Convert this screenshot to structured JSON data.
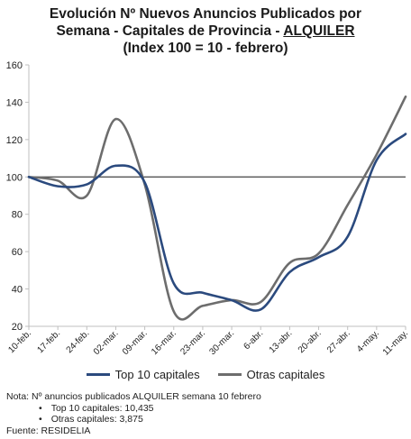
{
  "title": {
    "line1": "Evolución Nº Nuevos Anuncios Publicados por",
    "line2_prefix": "Semana - Capitales de Provincia - ",
    "line2_underlined": "ALQUILER",
    "line3": "(Index 100 = 10 - febrero)"
  },
  "chart_data": {
    "type": "line",
    "x": [
      "10-feb.",
      "17-feb.",
      "24-feb.",
      "02-mar.",
      "09-mar.",
      "16-mar.",
      "23-mar.",
      "30-mar.",
      "6-abr.",
      "13-abr.",
      "20-abr.",
      "27-abr.",
      "4-may.",
      "11-may."
    ],
    "ylim": [
      20,
      160
    ],
    "yticks": [
      20,
      40,
      60,
      80,
      100,
      120,
      140,
      160
    ],
    "reference_line": 100,
    "grid": false,
    "legend_position": "bottom",
    "series": [
      {
        "name": "Top 10 capitales",
        "color": "#2b4a7e",
        "values": [
          100,
          95,
          96,
          106,
          97,
          43,
          38,
          34,
          29,
          49,
          57,
          68,
          109,
          123
        ]
      },
      {
        "name": "Otras capitales",
        "color": "#6d6d6d",
        "values": [
          100,
          98,
          90,
          131,
          96,
          28,
          31,
          34,
          33,
          54,
          59,
          85,
          112,
          143
        ]
      }
    ]
  },
  "note": {
    "line1": "Nota: Nº anuncios publicados ALQUILER semana 10 febrero",
    "bullet1": "Top 10 capitales: 10,435",
    "bullet2": "Otras capitales:  3,875",
    "source": "Fuente: RESIDELIA"
  },
  "colors": {
    "axis": "#bfbfbf",
    "reference": "#555555",
    "text": "#222222"
  }
}
